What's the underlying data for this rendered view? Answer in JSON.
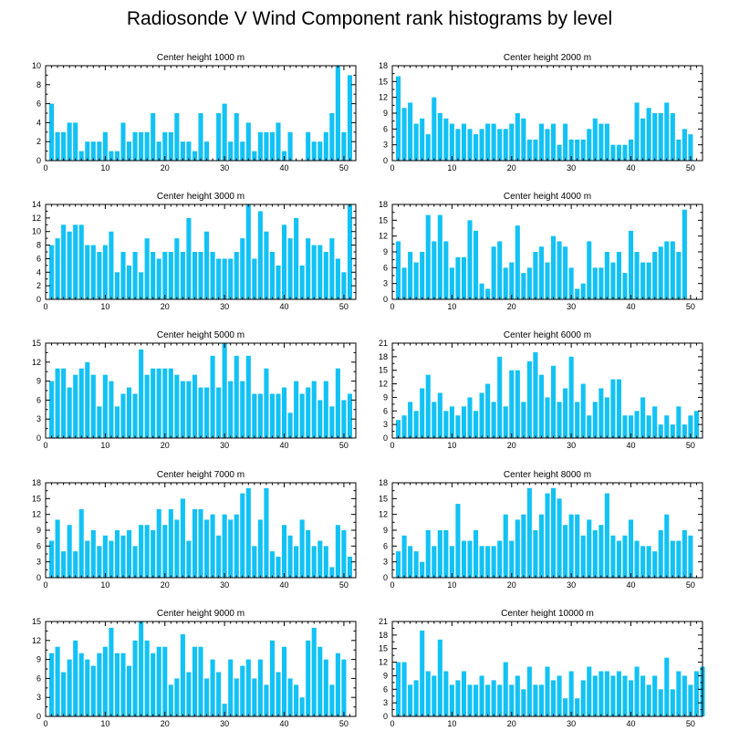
{
  "title": "Radiosonde V Wind Component rank histograms by level",
  "colors": {
    "bar": "#12c2f4",
    "axis": "#000000",
    "background": "#ffffff"
  },
  "chart_data": [
    {
      "type": "bar",
      "title": "Center height 1000 m",
      "xlim": [
        0,
        52
      ],
      "ylim": [
        0,
        10
      ],
      "xticks": [
        0,
        10,
        20,
        30,
        40,
        50
      ],
      "yticks": [
        0,
        2,
        4,
        6,
        8,
        10
      ],
      "values": [
        6,
        3,
        3,
        4,
        4,
        1,
        2,
        2,
        2,
        3,
        1,
        1,
        4,
        2,
        3,
        3,
        3,
        5,
        2,
        3,
        3,
        5,
        2,
        2,
        1,
        5,
        2,
        0,
        5,
        6,
        2,
        5,
        2,
        4,
        1,
        3,
        3,
        3,
        4,
        1,
        3,
        0,
        0,
        3,
        2,
        2,
        3,
        5,
        10,
        3,
        9
      ]
    },
    {
      "type": "bar",
      "title": "Center height 2000 m",
      "xlim": [
        0,
        52
      ],
      "ylim": [
        0,
        18
      ],
      "xticks": [
        0,
        10,
        20,
        30,
        40,
        50
      ],
      "yticks": [
        0,
        3,
        6,
        9,
        12,
        15,
        18
      ],
      "values": [
        16,
        10,
        11,
        7,
        8,
        5,
        12,
        9,
        8,
        7,
        6,
        7,
        6,
        5,
        6,
        7,
        7,
        6,
        6,
        7,
        9,
        8,
        4,
        4,
        7,
        6,
        7,
        3,
        7,
        4,
        4,
        4,
        6,
        8,
        7,
        7,
        3,
        3,
        3,
        4,
        11,
        8,
        10,
        9,
        9,
        11,
        9,
        4,
        6,
        5
      ]
    },
    {
      "type": "bar",
      "title": "Center height 3000 m",
      "xlim": [
        0,
        52
      ],
      "ylim": [
        0,
        14
      ],
      "xticks": [
        0,
        10,
        20,
        30,
        40,
        50
      ],
      "yticks": [
        0,
        2,
        4,
        6,
        8,
        10,
        12,
        14
      ],
      "values": [
        8,
        9,
        11,
        10,
        11,
        11,
        8,
        8,
        7,
        8,
        10,
        4,
        7,
        5,
        7,
        4,
        9,
        7,
        6,
        7,
        7,
        9,
        7,
        12,
        7,
        7,
        10,
        7,
        6,
        6,
        6,
        7,
        9,
        14,
        6,
        13,
        10,
        7,
        5,
        11,
        9,
        12,
        5,
        9,
        8,
        8,
        7,
        9,
        6,
        4,
        14
      ]
    },
    {
      "type": "bar",
      "title": "Center height 4000 m",
      "xlim": [
        0,
        52
      ],
      "ylim": [
        0,
        18
      ],
      "xticks": [
        0,
        10,
        20,
        30,
        40,
        50
      ],
      "yticks": [
        0,
        3,
        6,
        9,
        12,
        15,
        18
      ],
      "values": [
        11,
        6,
        9,
        7,
        9,
        16,
        11,
        16,
        11,
        6,
        8,
        8,
        15,
        13,
        3,
        2,
        10,
        11,
        6,
        7,
        14,
        5,
        6,
        9,
        10,
        7,
        12,
        11,
        10,
        6,
        2,
        3,
        11,
        6,
        6,
        9,
        7,
        9,
        5,
        13,
        9,
        7,
        7,
        9,
        10,
        11,
        11,
        9,
        17
      ]
    },
    {
      "type": "bar",
      "title": "Center height 5000 m",
      "xlim": [
        0,
        52
      ],
      "ylim": [
        0,
        15
      ],
      "xticks": [
        0,
        10,
        20,
        30,
        40,
        50
      ],
      "yticks": [
        0,
        3,
        6,
        9,
        12,
        15
      ],
      "values": [
        9,
        11,
        11,
        8,
        10,
        11,
        12,
        10,
        5,
        10,
        9,
        5,
        7,
        8,
        7,
        14,
        10,
        11,
        11,
        11,
        11,
        10,
        9,
        9,
        10,
        8,
        8,
        13,
        8,
        15,
        9,
        13,
        9,
        13,
        7,
        7,
        11,
        7,
        7,
        8,
        4,
        9,
        7,
        8,
        9,
        6,
        9,
        5,
        11,
        6,
        7
      ]
    },
    {
      "type": "bar",
      "title": "Center height 6000 m",
      "xlim": [
        0,
        52
      ],
      "ylim": [
        0,
        21
      ],
      "xticks": [
        0,
        10,
        20,
        30,
        40,
        50
      ],
      "yticks": [
        0,
        3,
        6,
        9,
        12,
        15,
        18,
        21
      ],
      "values": [
        4,
        5,
        8,
        6,
        11,
        14,
        8,
        10,
        6,
        7,
        5,
        7,
        9,
        6,
        10,
        12,
        8,
        18,
        7,
        15,
        15,
        8,
        17,
        19,
        14,
        9,
        16,
        8,
        11,
        18,
        8,
        12,
        5,
        8,
        11,
        9,
        13,
        13,
        5,
        5,
        6,
        9,
        5,
        7,
        3,
        5,
        3,
        7,
        3,
        5,
        6
      ]
    },
    {
      "type": "bar",
      "title": "Center height 7000 m",
      "xlim": [
        0,
        52
      ],
      "ylim": [
        0,
        18
      ],
      "xticks": [
        0,
        10,
        20,
        30,
        40,
        50
      ],
      "yticks": [
        0,
        3,
        6,
        9,
        12,
        15,
        18
      ],
      "values": [
        7,
        11,
        5,
        10,
        5,
        13,
        7,
        9,
        6,
        8,
        7,
        9,
        8,
        9,
        6,
        10,
        10,
        9,
        13,
        10,
        13,
        11,
        15,
        7,
        13,
        13,
        11,
        12,
        8,
        12,
        11,
        12,
        16,
        17,
        6,
        11,
        17,
        5,
        4,
        10,
        8,
        6,
        11,
        9,
        6,
        7,
        6,
        2,
        10,
        9,
        4
      ]
    },
    {
      "type": "bar",
      "title": "Center height 8000 m",
      "xlim": [
        0,
        52
      ],
      "ylim": [
        0,
        18
      ],
      "xticks": [
        0,
        10,
        20,
        30,
        40,
        50
      ],
      "yticks": [
        0,
        3,
        6,
        9,
        12,
        15,
        18
      ],
      "values": [
        5,
        8,
        6,
        5,
        3,
        9,
        6,
        9,
        9,
        6,
        14,
        7,
        7,
        9,
        6,
        6,
        6,
        7,
        12,
        7,
        11,
        12,
        17,
        9,
        12,
        16,
        17,
        15,
        10,
        12,
        12,
        8,
        11,
        9,
        10,
        16,
        8,
        7,
        8,
        11,
        7,
        6,
        6,
        5,
        9,
        12,
        7,
        7,
        9,
        8
      ]
    },
    {
      "type": "bar",
      "title": "Center height 9000 m",
      "xlim": [
        0,
        52
      ],
      "ylim": [
        0,
        15
      ],
      "xticks": [
        0,
        10,
        20,
        30,
        40,
        50
      ],
      "yticks": [
        0,
        3,
        6,
        9,
        12,
        15
      ],
      "values": [
        10,
        11,
        7,
        9,
        12,
        10,
        9,
        8,
        10,
        11,
        14,
        10,
        10,
        8,
        12,
        15,
        12,
        10,
        11,
        11,
        5,
        6,
        13,
        7,
        11,
        11,
        6,
        9,
        7,
        2,
        9,
        6,
        8,
        9,
        6,
        9,
        5,
        12,
        7,
        11,
        6,
        5,
        3,
        12,
        14,
        11,
        9,
        5,
        10,
        9
      ]
    },
    {
      "type": "bar",
      "title": "Center height 10000 m",
      "xlim": [
        0,
        52
      ],
      "ylim": [
        0,
        21
      ],
      "xticks": [
        0,
        10,
        20,
        30,
        40,
        50
      ],
      "yticks": [
        0,
        3,
        6,
        9,
        12,
        15,
        18,
        21
      ],
      "values": [
        12,
        12,
        7,
        8,
        19,
        10,
        9,
        17,
        10,
        7,
        8,
        10,
        7,
        7,
        9,
        7,
        8,
        7,
        12,
        7,
        9,
        6,
        11,
        7,
        7,
        11,
        8,
        9,
        4,
        10,
        4,
        8,
        11,
        9,
        10,
        10,
        9,
        10,
        9,
        8,
        11,
        9,
        7,
        9,
        6,
        13,
        6,
        10,
        9,
        7,
        10,
        11
      ]
    }
  ]
}
